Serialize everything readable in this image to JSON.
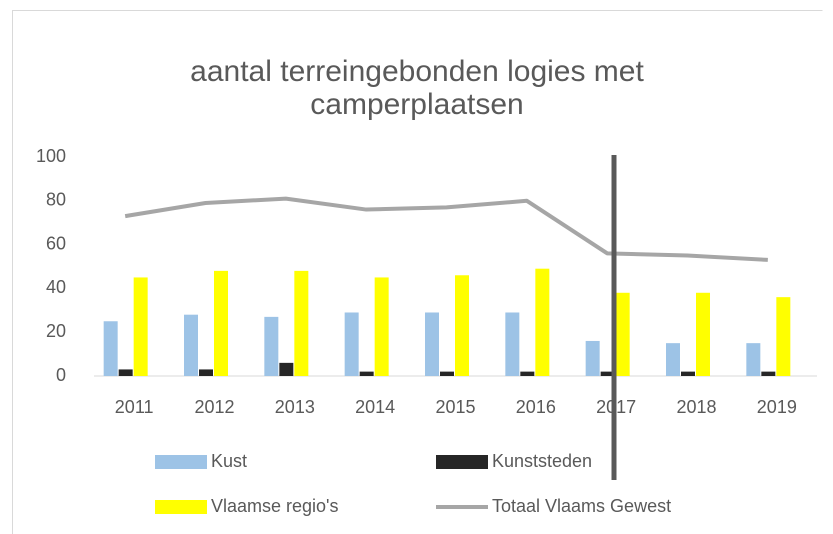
{
  "chart_data": {
    "type": "bar",
    "title": [
      "aantal terreingebonden logies met",
      "camperplaatsen"
    ],
    "categories": [
      "2011",
      "2012",
      "2013",
      "2014",
      "2015",
      "2016",
      "2017",
      "2018",
      "2019"
    ],
    "series": [
      {
        "name": "Kust",
        "color": "#9dc3e6",
        "type": "bar",
        "values": [
          25,
          28,
          27,
          29,
          29,
          29,
          16,
          15,
          15
        ]
      },
      {
        "name": "Kunststeden",
        "color": "#262626",
        "type": "bar",
        "values": [
          3,
          3,
          6,
          2,
          2,
          2,
          2,
          2,
          2
        ]
      },
      {
        "name": "Vlaamse regio's",
        "color": "#ffff00",
        "type": "bar",
        "values": [
          45,
          48,
          48,
          45,
          46,
          49,
          38,
          38,
          36
        ]
      },
      {
        "name": "Totaal Vlaams Gewest",
        "color": "#a6a6a6",
        "type": "line",
        "values": [
          73,
          79,
          81,
          76,
          77,
          80,
          56,
          55,
          53
        ]
      }
    ],
    "ylim": [
      0,
      100
    ],
    "yticks": [
      0,
      20,
      40,
      60,
      80,
      100
    ],
    "grid": false,
    "legend": "bottom"
  }
}
